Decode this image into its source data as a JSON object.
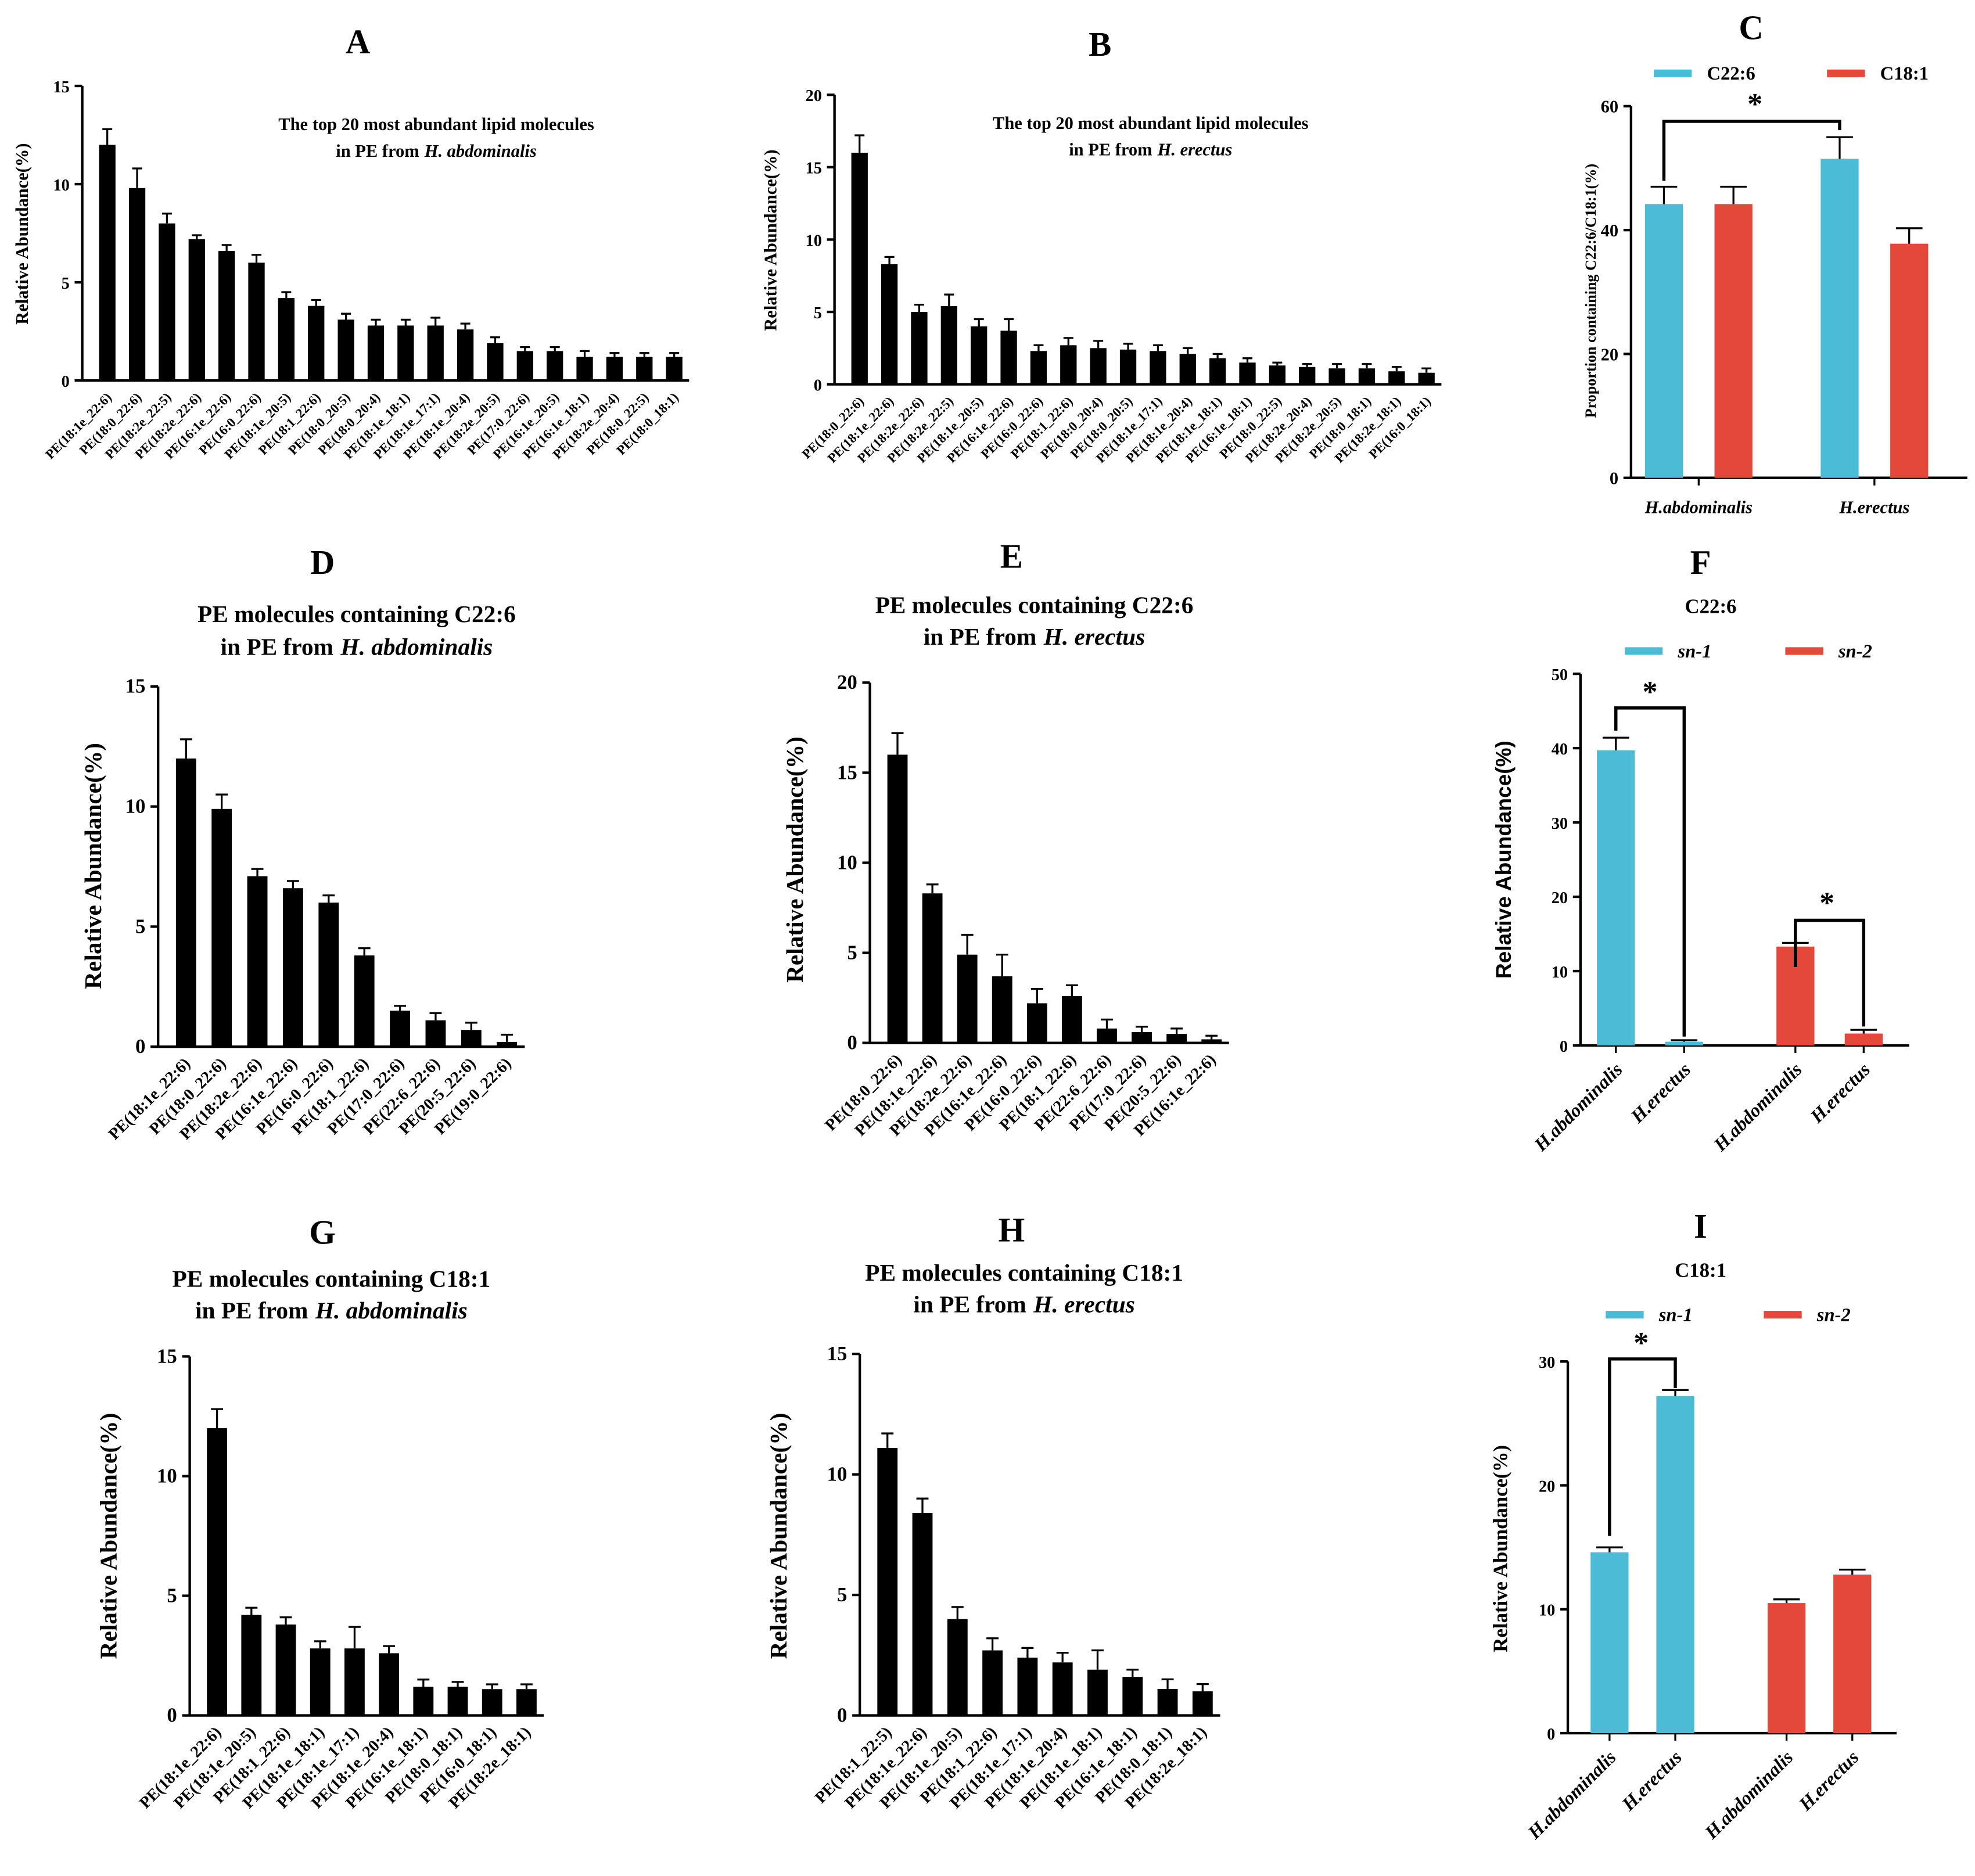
{
  "chart_data": [
    {
      "type": "bar",
      "panel": "A",
      "title": "The top 20 most abundant lipid molecules",
      "subtitle": "in PE from",
      "species": "H. abdominalis",
      "y_label": "Relative Abundance(%)",
      "color": "#000000",
      "categories": [
        "PE(18:1e_22:6)",
        "PE(18:0_22:6)",
        "PE(18:2e_22:5)",
        "PE(18:2e_22:6)",
        "PE(16:1e_22:6)",
        "PE(16:0_22:6)",
        "PE(18:1e_20:5)",
        "PE(18:1_22:6)",
        "PE(18:0_20:5)",
        "PE(18:0_20:4)",
        "PE(18:1e_18:1)",
        "PE(18:1e_17:1)",
        "PE(18:1e_20:4)",
        "PE(18:2e_20:5)",
        "PE(17:0_22:6)",
        "PE(16:1e_20:5)",
        "PE(16:1e_18:1)",
        "PE(18:2e_20:4)",
        "PE(18:0_22:5)",
        "PE(18:0_18:1)"
      ],
      "values": [
        12,
        9.8,
        8,
        7.2,
        6.6,
        6,
        4.2,
        3.8,
        3.1,
        2.8,
        2.8,
        2.8,
        2.6,
        1.9,
        1.5,
        1.5,
        1.2,
        1.2,
        1.2,
        1.2
      ],
      "errors": [
        0.8,
        1.0,
        0.5,
        0.2,
        0.3,
        0.4,
        0.3,
        0.3,
        0.3,
        0.3,
        0.3,
        0.4,
        0.3,
        0.3,
        0.2,
        0.2,
        0.3,
        0.2,
        0.2,
        0.2
      ],
      "ylim": [
        0,
        15
      ],
      "yticks": [
        0,
        5,
        10,
        15
      ]
    },
    {
      "type": "bar",
      "panel": "B",
      "title": "The top 20 most abundant lipid molecules",
      "subtitle": "in PE from",
      "species": "H. erectus",
      "y_label": "Relative Abundance(%)",
      "color": "#000000",
      "categories": [
        "PE(18:0_22:6)",
        "PE(18:1e_22:6)",
        "PE(18:2e_22:6)",
        "PE(18:2e_22:5)",
        "PE(18:1e_20:5)",
        "PE(16:1e_22:6)",
        "PE(16:0_22:6)",
        "PE(18:1_22:6)",
        "PE(18:0_20:4)",
        "PE(18:0_20:5)",
        "PE(18:1e_17:1)",
        "PE(18:1e_20:4)",
        "PE(18:1e_18:1)",
        "PE(16:1e_18:1)",
        "PE(18:0_22:5)",
        "PE(18:2e_20:4)",
        "PE(18:2e_20:5)",
        "PE(18:0_18:1)",
        "PE(18:2e_18:1)",
        "PE(16:0_18:1)"
      ],
      "values": [
        16,
        8.3,
        5,
        5.4,
        4,
        3.7,
        2.3,
        2.7,
        2.5,
        2.4,
        2.3,
        2.1,
        1.8,
        1.5,
        1.3,
        1.2,
        1.1,
        1.1,
        0.9,
        0.8
      ],
      "errors": [
        1.2,
        0.5,
        0.5,
        0.8,
        0.5,
        0.8,
        0.4,
        0.5,
        0.5,
        0.4,
        0.4,
        0.4,
        0.3,
        0.3,
        0.2,
        0.2,
        0.3,
        0.3,
        0.3,
        0.3
      ],
      "ylim": [
        0,
        20
      ],
      "yticks": [
        0,
        5,
        10,
        15,
        20
      ]
    },
    {
      "type": "grouped",
      "panel": "C",
      "y_label": "Proportion containing C22:6/C18:1(%)",
      "categories": [
        "H.abdominalis",
        "H.erectus"
      ],
      "series": [
        {
          "name": "C22:6",
          "color": "#4bbbd6",
          "values": [
            44.2,
            51.5
          ],
          "errors": [
            2.8,
            3.5
          ]
        },
        {
          "name": "C18:1",
          "color": "#e4483a",
          "values": [
            44.2,
            37.8
          ],
          "errors": [
            2.8,
            2.5
          ]
        }
      ],
      "annotations": [
        "*"
      ],
      "ylim": [
        0,
        60
      ],
      "yticks": [
        0,
        20,
        40,
        60
      ]
    },
    {
      "type": "bar",
      "panel": "D",
      "title": "PE molecules containing C22:6",
      "subtitle": "in PE from",
      "species": "H. abdominalis",
      "y_label": "Relative Abundance(%)",
      "color": "#000000",
      "categories": [
        "PE(18:1e_22:6)",
        "PE(18:0_22:6)",
        "PE(18:2e_22:6)",
        "PE(16:1e_22:6)",
        "PE(16:0_22:6)",
        "PE(18:1_22:6)",
        "PE(17:0_22:6)",
        "PE(22:6_22:6)",
        "PE(20:5_22:6)",
        "PE(19:0_22:6)"
      ],
      "values": [
        12,
        9.9,
        7.1,
        6.6,
        6.0,
        3.8,
        1.5,
        1.1,
        0.7,
        0.2
      ],
      "errors": [
        0.8,
        0.6,
        0.3,
        0.3,
        0.3,
        0.3,
        0.2,
        0.3,
        0.3,
        0.3
      ],
      "ylim": [
        0,
        15
      ],
      "yticks": [
        0,
        5,
        10,
        15
      ]
    },
    {
      "type": "bar",
      "panel": "E",
      "title": "PE molecules containing C22:6",
      "subtitle": "in PE from",
      "species": "H. erectus",
      "y_label": "Relative Abundance(%)",
      "color": "#000000",
      "categories": [
        "PE(18:0_22:6)",
        "PE(18:1e_22:6)",
        "PE(18:2e_22:6)",
        "PE(16:1e_22:6)",
        "PE(16:0_22:6)",
        "PE(18:1_22:6)",
        "PE(22:6_22:6)",
        "PE(17:0_22:6)",
        "PE(20:5_22:6)",
        "PE(16:1e_22:6)"
      ],
      "values": [
        16,
        8.3,
        4.9,
        3.7,
        2.2,
        2.6,
        0.8,
        0.6,
        0.5,
        0.2
      ],
      "errors": [
        1.2,
        0.5,
        1.1,
        1.2,
        0.8,
        0.6,
        0.5,
        0.3,
        0.3,
        0.2
      ],
      "ylim": [
        0,
        20
      ],
      "yticks": [
        0,
        5,
        10,
        15,
        20
      ]
    },
    {
      "type": "grouped",
      "panel": "F",
      "title": "C22:6",
      "y_label": "Relative Abundance(%)",
      "categories": [
        "H.abdominalis",
        "H.erectus",
        "H.abdominalis",
        "H.erectus"
      ],
      "series": [
        {
          "name": "sn-1",
          "color": "#4bbbd6",
          "values": [
            39.7,
            0.5,
            null,
            null
          ],
          "errors": [
            1.7,
            0.2,
            null,
            null
          ]
        },
        {
          "name": "sn-2",
          "color": "#e4483a",
          "values": [
            null,
            null,
            13.3,
            1.6
          ],
          "errors": [
            null,
            null,
            0.5,
            0.5
          ]
        }
      ],
      "annotations": [
        "*",
        "*"
      ],
      "ylim": [
        0,
        50
      ],
      "yticks": [
        0,
        10,
        20,
        30,
        40,
        50
      ]
    },
    {
      "type": "bar",
      "panel": "G",
      "title": "PE molecules containing C18:1",
      "subtitle": "in PE from",
      "species": "H. abdominalis",
      "y_label": "Relative Abundance(%)",
      "color": "#000000",
      "categories": [
        "PE(18:1e_22:6)",
        "PE(18:1e_20:5)",
        "PE(18:1_22:6)",
        "PE(18:1e_18:1)",
        "PE(18:1e_17:1)",
        "PE(18:1e_20:4)",
        "PE(16:1e_18:1)",
        "PE(18:0_18:1)",
        "PE(16:0_18:1)",
        "PE(18:2e_18:1)"
      ],
      "values": [
        12,
        4.2,
        3.8,
        2.8,
        2.8,
        2.6,
        1.2,
        1.2,
        1.1,
        1.1
      ],
      "errors": [
        0.8,
        0.3,
        0.3,
        0.3,
        0.9,
        0.3,
        0.3,
        0.2,
        0.2,
        0.2
      ],
      "ylim": [
        0,
        15
      ],
      "yticks": [
        0,
        5,
        10,
        15
      ]
    },
    {
      "type": "bar",
      "panel": "H",
      "title": "PE molecules containing C18:1",
      "subtitle": "in PE from",
      "species": "H. erectus",
      "y_label": "Relative Abundance(%)",
      "color": "#000000",
      "categories": [
        "PE(18:1_22:5)",
        "PE(18:1e_22:6)",
        "PE(18:1e_20:5)",
        "PE(18:1_22:6)",
        "PE(18:1e_17:1)",
        "PE(18:1e_20:4)",
        "PE(18:1e_18:1)",
        "PE(16:1e_18:1)",
        "PE(18:0_18:1)",
        "PE(18:2e_18:1)"
      ],
      "values": [
        11.1,
        8.4,
        4.0,
        2.7,
        2.4,
        2.2,
        1.9,
        1.6,
        1.1,
        1.0
      ],
      "errors": [
        0.6,
        0.6,
        0.5,
        0.5,
        0.4,
        0.4,
        0.8,
        0.3,
        0.4,
        0.3
      ],
      "ylim": [
        0,
        15
      ],
      "yticks": [
        0,
        5,
        10,
        15
      ]
    },
    {
      "type": "grouped",
      "panel": "I",
      "title": "C18:1",
      "y_label": "Relative Abundance(%)",
      "categories": [
        "H.abdominalis",
        "H.erectus",
        "H.abdominalis",
        "H.erectus"
      ],
      "series": [
        {
          "name": "sn-1",
          "color": "#4bbbd6",
          "values": [
            14.6,
            27.2,
            null,
            null
          ],
          "errors": [
            0.4,
            0.5,
            null,
            null
          ]
        },
        {
          "name": "sn-2",
          "color": "#e4483a",
          "values": [
            null,
            null,
            10.5,
            12.8
          ],
          "errors": [
            null,
            null,
            0.3,
            0.4
          ]
        }
      ],
      "annotations": [
        "*"
      ],
      "ylim": [
        0,
        30
      ],
      "yticks": [
        0,
        10,
        20,
        30
      ]
    }
  ]
}
